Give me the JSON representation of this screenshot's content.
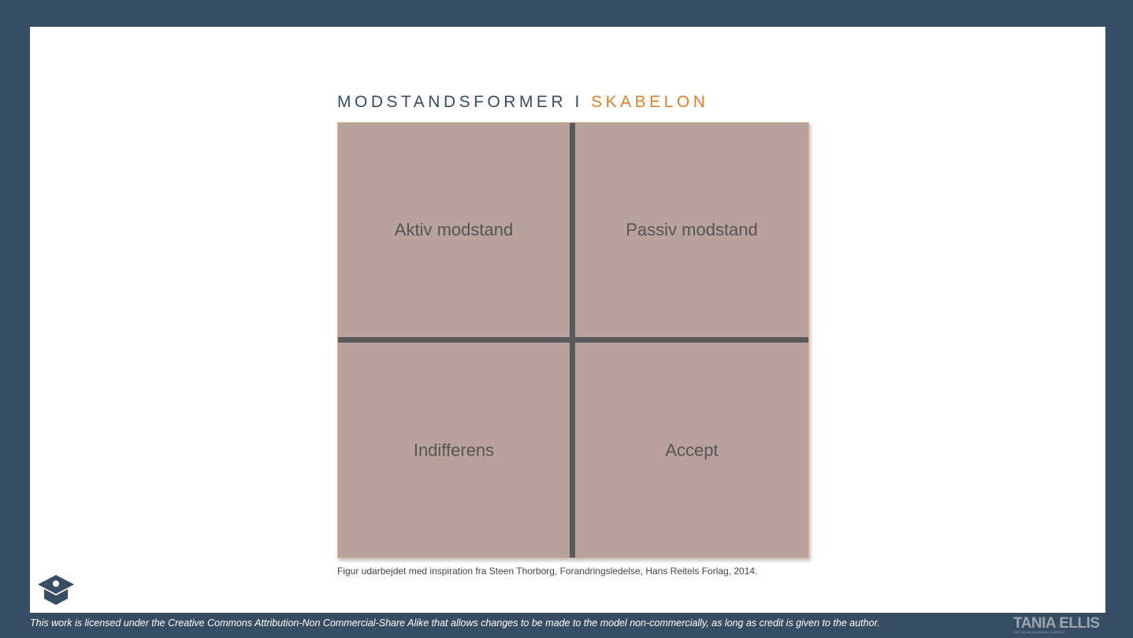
{
  "title": {
    "main": "MODSTANDSFORMER",
    "separator": "I",
    "accent": "SKABELON"
  },
  "quadrants": [
    "Aktiv modstand",
    "Passiv modstand",
    "Indifferens",
    "Accept"
  ],
  "caption": "Figur udarbejdet med inspiration fra Steen Thorborg, Forandringsledelse, Hans Reitels Forlag, 2014.",
  "footer": {
    "license": "This work is licensed under the Creative Commons Attribution-Non Commercial-Share Alike that allows changes to be made to the model non-commercially, as long as credit is given to the author.",
    "brand": "TANIA ELLIS",
    "brand_tagline": "THE SOCIAL BUSINESS COMPANY"
  }
}
